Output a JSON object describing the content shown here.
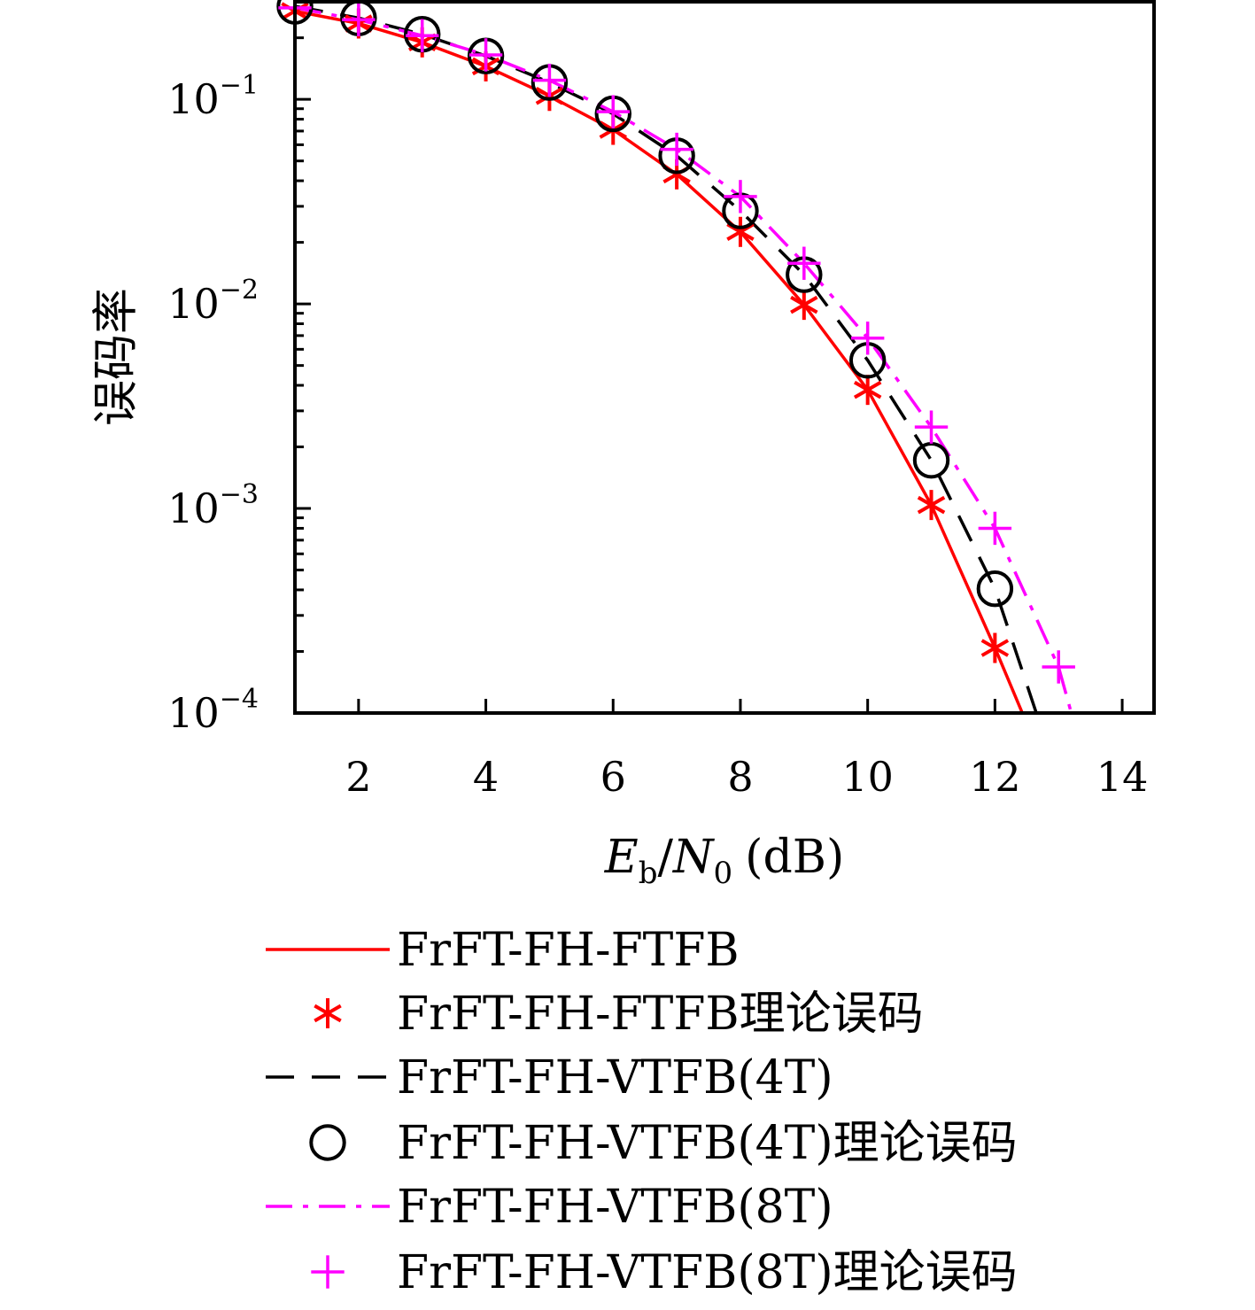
{
  "chart_data": {
    "type": "line",
    "xlabel": {
      "main": "E",
      "sub1": "b",
      "sep": "/",
      "main2": "N",
      "sub2": "0",
      "unit": "(dB)"
    },
    "ylabel": "误码率",
    "xlim": [
      1,
      14.5
    ],
    "ylim": [
      0.0001,
      0.3
    ],
    "yscale": "log",
    "xticks": [
      2,
      4,
      6,
      8,
      10,
      12,
      14
    ],
    "yticks": [
      {
        "value": 0.1,
        "base": "10",
        "exp": "−1"
      },
      {
        "value": 0.01,
        "base": "10",
        "exp": "−2"
      },
      {
        "value": 0.001,
        "base": "10",
        "exp": "−3"
      },
      {
        "value": 0.0001,
        "base": "10",
        "exp": "−4"
      }
    ],
    "legend_position": "below",
    "series": [
      {
        "name": "FrFT-FH-FTFB",
        "style": "line",
        "dash": "solid",
        "color": "#ff0000",
        "x": [
          1,
          2,
          3,
          4,
          5,
          6,
          7,
          8,
          9,
          10,
          11,
          12,
          12.43
        ],
        "y": [
          0.27,
          0.235,
          0.19,
          0.145,
          0.104,
          0.071,
          0.043,
          0.0225,
          0.0099,
          0.0038,
          0.00104,
          0.000208,
          0.0001
        ]
      },
      {
        "name": "FrFT-FH-FTFB理论误码",
        "style": "marker",
        "marker": "asterisk",
        "color": "#ff0000",
        "x": [
          1,
          2,
          3,
          4,
          5,
          6,
          7,
          8,
          9,
          10,
          11,
          12
        ],
        "y": [
          0.27,
          0.235,
          0.19,
          0.145,
          0.104,
          0.071,
          0.043,
          0.0225,
          0.0099,
          0.0038,
          0.00104,
          0.000208
        ]
      },
      {
        "name": "FrFT-FH-VTFB(4T)",
        "style": "line",
        "dash": "dashed",
        "color": "#000000",
        "x": [
          1,
          2,
          3,
          4,
          5,
          6,
          7,
          8,
          9,
          10,
          11,
          12,
          12.65
        ],
        "y": [
          0.285,
          0.25,
          0.208,
          0.163,
          0.121,
          0.085,
          0.053,
          0.0285,
          0.0139,
          0.0053,
          0.00172,
          0.000405,
          0.0001
        ]
      },
      {
        "name": "FrFT-FH-VTFB(4T)理论误码",
        "style": "marker",
        "marker": "circle",
        "color": "#000000",
        "x": [
          1,
          2,
          3,
          4,
          5,
          6,
          7,
          8,
          9,
          10,
          11,
          12
        ],
        "y": [
          0.285,
          0.25,
          0.208,
          0.163,
          0.121,
          0.085,
          0.053,
          0.0285,
          0.0139,
          0.0053,
          0.00172,
          0.000405
        ]
      },
      {
        "name": "FrFT-FH-VTFB(8T)",
        "style": "line",
        "dash": "dashdot",
        "color": "#ff00ff",
        "x": [
          1,
          2,
          3,
          4,
          5,
          6,
          7,
          8,
          9,
          10,
          11,
          12,
          13,
          13.2
        ],
        "y": [
          0.28,
          0.245,
          0.205,
          0.165,
          0.124,
          0.087,
          0.057,
          0.0335,
          0.0158,
          0.0068,
          0.0025,
          0.0008,
          0.000168,
          0.0001
        ]
      },
      {
        "name": "FrFT-FH-VTFB(8T)理论误码",
        "style": "marker",
        "marker": "plus",
        "color": "#ff00ff",
        "x": [
          1,
          2,
          3,
          4,
          5,
          6,
          7,
          8,
          9,
          10,
          11,
          12,
          13
        ],
        "y": [
          0.28,
          0.245,
          0.205,
          0.165,
          0.124,
          0.087,
          0.057,
          0.0335,
          0.0158,
          0.0068,
          0.0025,
          0.0008,
          0.000168
        ]
      }
    ]
  }
}
